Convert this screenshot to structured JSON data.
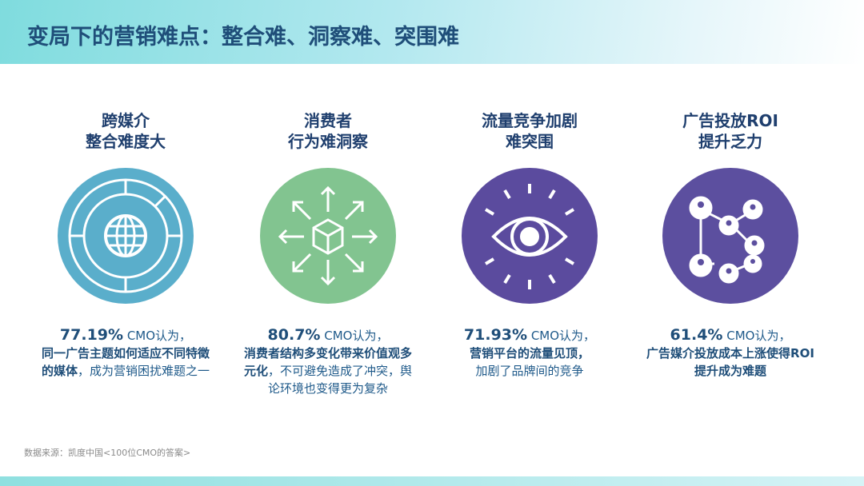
{
  "header": {
    "title": "变局下的营销难点：整合难、洞察难、突围难"
  },
  "columns": [
    {
      "title_l1": "跨媒介",
      "title_l2": "整合难度大",
      "icon": "globe-ring-icon",
      "color": "#5aaecb",
      "pct": "77.19%",
      "lead": " CMO认为，",
      "bold": "同一广告主题如何适应不同特徵的媒体",
      "rest": "，成为营销困扰难题之一"
    },
    {
      "title_l1": "消费者",
      "title_l2": "行为难洞察",
      "icon": "cube-arrows-icon",
      "color": "#82c490",
      "pct": "80.7%",
      "lead": " CMO认为，",
      "bold": "消费者结构多变化带来价值观多元化",
      "rest": "，不可避免造成了冲突，舆论环境也变得更为复杂"
    },
    {
      "title_l1": "流量竞争加剧",
      "title_l2": "难突围",
      "icon": "eye-icon",
      "color": "#5b4b9e",
      "pct": "71.93%",
      "lead": " CMO认为，",
      "bold": "营销平台的流量见顶，",
      "rest": "加剧了品牌间的竞争"
    },
    {
      "title_l1": "广告投放ROI",
      "title_l2": "提升乏力",
      "icon": "network-people-icon",
      "color": "#5c4f9f",
      "pct": "61.4%",
      "lead": " CMO认为，",
      "bold": "广告媒介投放成本上涨使得ROI提升成为难题",
      "rest": ""
    }
  ],
  "source": "数据来源：凯度中国<100位CMO的答案>"
}
